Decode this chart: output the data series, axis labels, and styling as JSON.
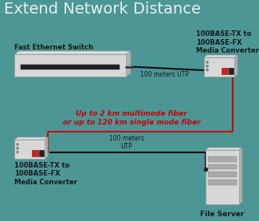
{
  "bg_color": "#4d9696",
  "title": "Extend Network Distance",
  "title_color": "#e8f0f0",
  "title_fontsize": 14,
  "label_switch": "Fast Ethernet Switch",
  "label_converter_tr": "100BASE-TX to\n100BASE-FX\nMedia Converter",
  "label_converter_bl": "100BASE-TX to\n100BASE-FX\nMedia Converter",
  "label_fiber": "Up to 2 km multimode fiber\nor up to 120 km single mode fiber",
  "label_utp_top": "100 meters UTP",
  "label_utp_bot": "100 meters\nUTP",
  "label_server": "File Server",
  "text_dark": "#1a1a1a",
  "fiber_label_color": "#cc0000",
  "label_fontsize": 6.0,
  "fiber_label_fontsize": 6.5,
  "title_label_fontsize": 6.5,
  "cable_color": "#111111",
  "fiber_color": "#cc0000",
  "cable_lw": 1.5,
  "fiber_lw": 1.5
}
